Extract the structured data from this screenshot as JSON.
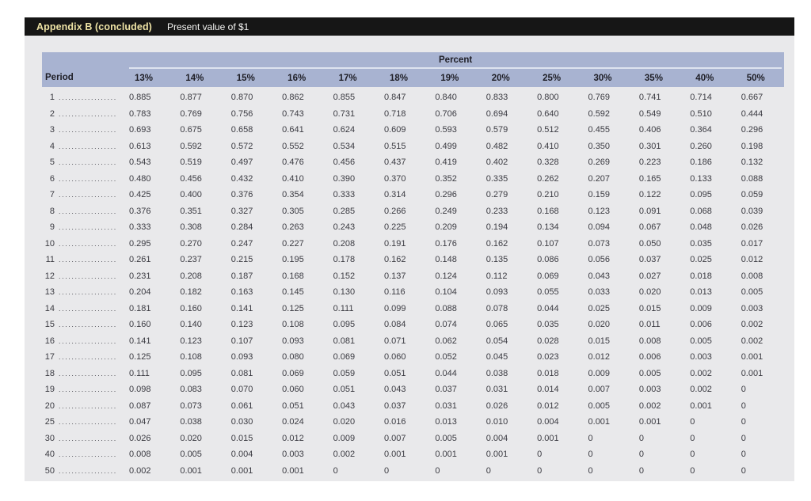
{
  "header": {
    "appendix_label": "Appendix B (concluded)",
    "subtitle": "Present value of $1"
  },
  "colors": {
    "title_bar_bg": "#161616",
    "title_accent": "#eee3a5",
    "title_text": "#f4f4f2",
    "table_header_bg": "#a8b3d1",
    "content_bg": "#e9e9eb",
    "percent_underline": "#dee3ef"
  },
  "table": {
    "group_header": "Percent",
    "period_header": "Period",
    "columns": [
      "13%",
      "14%",
      "15%",
      "16%",
      "17%",
      "18%",
      "19%",
      "20%",
      "25%",
      "30%",
      "35%",
      "40%",
      "50%"
    ],
    "rows": [
      {
        "period": "1",
        "values": [
          "0.885",
          "0.877",
          "0.870",
          "0.862",
          "0.855",
          "0.847",
          "0.840",
          "0.833",
          "0.800",
          "0.769",
          "0.741",
          "0.714",
          "0.667"
        ]
      },
      {
        "period": "2",
        "values": [
          "0.783",
          "0.769",
          "0.756",
          "0.743",
          "0.731",
          "0.718",
          "0.706",
          "0.694",
          "0.640",
          "0.592",
          "0.549",
          "0.510",
          "0.444"
        ]
      },
      {
        "period": "3",
        "values": [
          "0.693",
          "0.675",
          "0.658",
          "0.641",
          "0.624",
          "0.609",
          "0.593",
          "0.579",
          "0.512",
          "0.455",
          "0.406",
          "0.364",
          "0.296"
        ]
      },
      {
        "period": "4",
        "values": [
          "0.613",
          "0.592",
          "0.572",
          "0.552",
          "0.534",
          "0.515",
          "0.499",
          "0.482",
          "0.410",
          "0.350",
          "0.301",
          "0.260",
          "0.198"
        ]
      },
      {
        "period": "5",
        "values": [
          "0.543",
          "0.519",
          "0.497",
          "0.476",
          "0.456",
          "0.437",
          "0.419",
          "0.402",
          "0.328",
          "0.269",
          "0.223",
          "0.186",
          "0.132"
        ]
      },
      {
        "period": "6",
        "values": [
          "0.480",
          "0.456",
          "0.432",
          "0.410",
          "0.390",
          "0.370",
          "0.352",
          "0.335",
          "0.262",
          "0.207",
          "0.165",
          "0.133",
          "0.088"
        ]
      },
      {
        "period": "7",
        "values": [
          "0.425",
          "0.400",
          "0.376",
          "0.354",
          "0.333",
          "0.314",
          "0.296",
          "0.279",
          "0.210",
          "0.159",
          "0.122",
          "0.095",
          "0.059"
        ]
      },
      {
        "period": "8",
        "values": [
          "0.376",
          "0.351",
          "0.327",
          "0.305",
          "0.285",
          "0.266",
          "0.249",
          "0.233",
          "0.168",
          "0.123",
          "0.091",
          "0.068",
          "0.039"
        ]
      },
      {
        "period": "9",
        "values": [
          "0.333",
          "0.308",
          "0.284",
          "0.263",
          "0.243",
          "0.225",
          "0.209",
          "0.194",
          "0.134",
          "0.094",
          "0.067",
          "0.048",
          "0.026"
        ]
      },
      {
        "period": "10",
        "values": [
          "0.295",
          "0.270",
          "0.247",
          "0.227",
          "0.208",
          "0.191",
          "0.176",
          "0.162",
          "0.107",
          "0.073",
          "0.050",
          "0.035",
          "0.017"
        ]
      },
      {
        "period": "11",
        "values": [
          "0.261",
          "0.237",
          "0.215",
          "0.195",
          "0.178",
          "0.162",
          "0.148",
          "0.135",
          "0.086",
          "0.056",
          "0.037",
          "0.025",
          "0.012"
        ]
      },
      {
        "period": "12",
        "values": [
          "0.231",
          "0.208",
          "0.187",
          "0.168",
          "0.152",
          "0.137",
          "0.124",
          "0.112",
          "0.069",
          "0.043",
          "0.027",
          "0.018",
          "0.008"
        ]
      },
      {
        "period": "13",
        "values": [
          "0.204",
          "0.182",
          "0.163",
          "0.145",
          "0.130",
          "0.116",
          "0.104",
          "0.093",
          "0.055",
          "0.033",
          "0.020",
          "0.013",
          "0.005"
        ]
      },
      {
        "period": "14",
        "values": [
          "0.181",
          "0.160",
          "0.141",
          "0.125",
          "0.111",
          "0.099",
          "0.088",
          "0.078",
          "0.044",
          "0.025",
          "0.015",
          "0.009",
          "0.003"
        ]
      },
      {
        "period": "15",
        "values": [
          "0.160",
          "0.140",
          "0.123",
          "0.108",
          "0.095",
          "0.084",
          "0.074",
          "0.065",
          "0.035",
          "0.020",
          "0.011",
          "0.006",
          "0.002"
        ]
      },
      {
        "period": "16",
        "values": [
          "0.141",
          "0.123",
          "0.107",
          "0.093",
          "0.081",
          "0.071",
          "0.062",
          "0.054",
          "0.028",
          "0.015",
          "0.008",
          "0.005",
          "0.002"
        ]
      },
      {
        "period": "17",
        "values": [
          "0.125",
          "0.108",
          "0.093",
          "0.080",
          "0.069",
          "0.060",
          "0.052",
          "0.045",
          "0.023",
          "0.012",
          "0.006",
          "0.003",
          "0.001"
        ]
      },
      {
        "period": "18",
        "values": [
          "0.111",
          "0.095",
          "0.081",
          "0.069",
          "0.059",
          "0.051",
          "0.044",
          "0.038",
          "0.018",
          "0.009",
          "0.005",
          "0.002",
          "0.001"
        ]
      },
      {
        "period": "19",
        "values": [
          "0.098",
          "0.083",
          "0.070",
          "0.060",
          "0.051",
          "0.043",
          "0.037",
          "0.031",
          "0.014",
          "0.007",
          "0.003",
          "0.002",
          "0"
        ]
      },
      {
        "period": "20",
        "values": [
          "0.087",
          "0.073",
          "0.061",
          "0.051",
          "0.043",
          "0.037",
          "0.031",
          "0.026",
          "0.012",
          "0.005",
          "0.002",
          "0.001",
          "0"
        ]
      },
      {
        "period": "25",
        "values": [
          "0.047",
          "0.038",
          "0.030",
          "0.024",
          "0.020",
          "0.016",
          "0.013",
          "0.010",
          "0.004",
          "0.001",
          "0.001",
          "0",
          "0"
        ]
      },
      {
        "period": "30",
        "values": [
          "0.026",
          "0.020",
          "0.015",
          "0.012",
          "0.009",
          "0.007",
          "0.005",
          "0.004",
          "0.001",
          "0",
          "0",
          "0",
          "0"
        ]
      },
      {
        "period": "40",
        "values": [
          "0.008",
          "0.005",
          "0.004",
          "0.003",
          "0.002",
          "0.001",
          "0.001",
          "0.001",
          "0",
          "0",
          "0",
          "0",
          "0"
        ]
      },
      {
        "period": "50",
        "values": [
          "0.002",
          "0.001",
          "0.001",
          "0.001",
          "0",
          "0",
          "0",
          "0",
          "0",
          "0",
          "0",
          "0",
          "0"
        ]
      }
    ]
  }
}
